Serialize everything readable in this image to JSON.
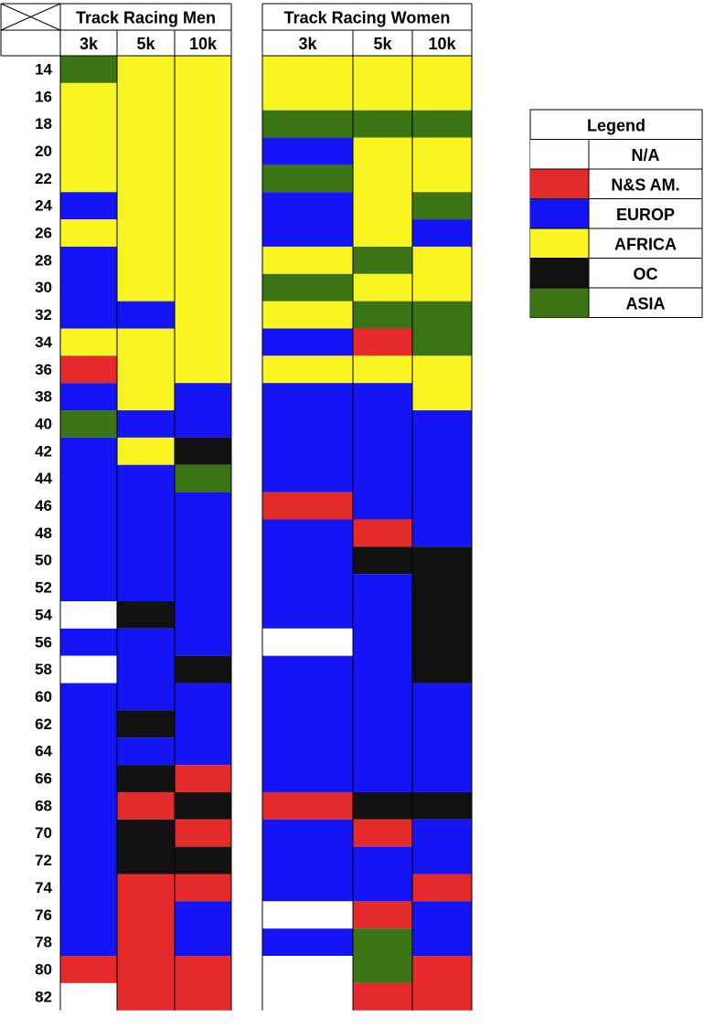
{
  "colors": {
    "N/A": "#ffffff",
    "N&S AM.": "#e42a2a",
    "EUROP": "#1414f5",
    "AFRICA": "#f8f522",
    "OC": "#111111",
    "ASIA": "#3b7513"
  },
  "chart_data": {
    "type": "heatmap",
    "row_labels": [
      "14",
      "16",
      "18",
      "20",
      "22",
      "24",
      "26",
      "28",
      "30",
      "32",
      "34",
      "36",
      "38",
      "40",
      "42",
      "44",
      "46",
      "48",
      "50",
      "52",
      "54",
      "56",
      "58",
      "60",
      "62",
      "64",
      "66",
      "68",
      "70",
      "72",
      "74",
      "76",
      "78",
      "80",
      "82"
    ],
    "groups": [
      {
        "title": "Track Racing Men",
        "columns": [
          {
            "name": "3k",
            "cells": [
              "ASIA",
              "AFRICA",
              "AFRICA",
              "AFRICA",
              "AFRICA",
              "EUROP",
              "AFRICA",
              "EUROP",
              "EUROP",
              "EUROP",
              "AFRICA",
              "N&S AM.",
              "EUROP",
              "ASIA",
              "EUROP",
              "EUROP",
              "EUROP",
              "EUROP",
              "EUROP",
              "EUROP",
              "N/A",
              "EUROP",
              "N/A",
              "EUROP",
              "EUROP",
              "EUROP",
              "EUROP",
              "EUROP",
              "EUROP",
              "EUROP",
              "EUROP",
              "EUROP",
              "EUROP",
              "N&S AM.",
              "N/A"
            ]
          },
          {
            "name": "5k",
            "cells": [
              "AFRICA",
              "AFRICA",
              "AFRICA",
              "AFRICA",
              "AFRICA",
              "AFRICA",
              "AFRICA",
              "AFRICA",
              "AFRICA",
              "EUROP",
              "AFRICA",
              "AFRICA",
              "AFRICA",
              "EUROP",
              "AFRICA",
              "EUROP",
              "EUROP",
              "EUROP",
              "EUROP",
              "EUROP",
              "OC",
              "EUROP",
              "EUROP",
              "EUROP",
              "OC",
              "EUROP",
              "OC",
              "N&S AM.",
              "OC",
              "OC",
              "N&S AM.",
              "N&S AM.",
              "N&S AM.",
              "N&S AM.",
              "N&S AM."
            ]
          },
          {
            "name": "10k",
            "cells": [
              "AFRICA",
              "AFRICA",
              "AFRICA",
              "AFRICA",
              "AFRICA",
              "AFRICA",
              "AFRICA",
              "AFRICA",
              "AFRICA",
              "AFRICA",
              "AFRICA",
              "AFRICA",
              "EUROP",
              "EUROP",
              "OC",
              "ASIA",
              "EUROP",
              "EUROP",
              "EUROP",
              "EUROP",
              "EUROP",
              "EUROP",
              "OC",
              "EUROP",
              "EUROP",
              "EUROP",
              "N&S AM.",
              "OC",
              "N&S AM.",
              "OC",
              "N&S AM.",
              "EUROP",
              "EUROP",
              "N&S AM.",
              "N&S AM."
            ]
          }
        ]
      },
      {
        "title": "Track Racing Women",
        "columns": [
          {
            "name": "3k",
            "cells": [
              "AFRICA",
              "AFRICA",
              "ASIA",
              "EUROP",
              "ASIA",
              "EUROP",
              "EUROP",
              "AFRICA",
              "ASIA",
              "AFRICA",
              "EUROP",
              "AFRICA",
              "EUROP",
              "EUROP",
              "EUROP",
              "EUROP",
              "N&S AM.",
              "EUROP",
              "EUROP",
              "EUROP",
              "EUROP",
              "N/A",
              "EUROP",
              "EUROP",
              "EUROP",
              "EUROP",
              "EUROP",
              "N&S AM.",
              "EUROP",
              "EUROP",
              "EUROP",
              "N/A",
              "EUROP",
              "N/A",
              "N/A"
            ]
          },
          {
            "name": "5k",
            "cells": [
              "AFRICA",
              "AFRICA",
              "ASIA",
              "AFRICA",
              "AFRICA",
              "AFRICA",
              "AFRICA",
              "ASIA",
              "AFRICA",
              "ASIA",
              "N&S AM.",
              "AFRICA",
              "EUROP",
              "EUROP",
              "EUROP",
              "EUROP",
              "EUROP",
              "N&S AM.",
              "OC",
              "EUROP",
              "EUROP",
              "EUROP",
              "EUROP",
              "EUROP",
              "EUROP",
              "EUROP",
              "EUROP",
              "OC",
              "N&S AM.",
              "EUROP",
              "EUROP",
              "N&S AM.",
              "ASIA",
              "ASIA",
              "N&S AM."
            ]
          },
          {
            "name": "10k",
            "cells": [
              "AFRICA",
              "AFRICA",
              "ASIA",
              "AFRICA",
              "AFRICA",
              "ASIA",
              "EUROP",
              "AFRICA",
              "AFRICA",
              "ASIA",
              "ASIA",
              "AFRICA",
              "AFRICA",
              "EUROP",
              "EUROP",
              "EUROP",
              "EUROP",
              "EUROP",
              "OC",
              "OC",
              "OC",
              "OC",
              "OC",
              "EUROP",
              "EUROP",
              "EUROP",
              "EUROP",
              "OC",
              "EUROP",
              "EUROP",
              "N&S AM.",
              "EUROP",
              "EUROP",
              "N&S AM.",
              "N&S AM."
            ]
          }
        ]
      }
    ],
    "legend": {
      "title": "Legend",
      "entries": [
        "N/A",
        "N&S AM.",
        "EUROP",
        "AFRICA",
        "OC",
        "ASIA"
      ],
      "placement": "top-right"
    }
  }
}
